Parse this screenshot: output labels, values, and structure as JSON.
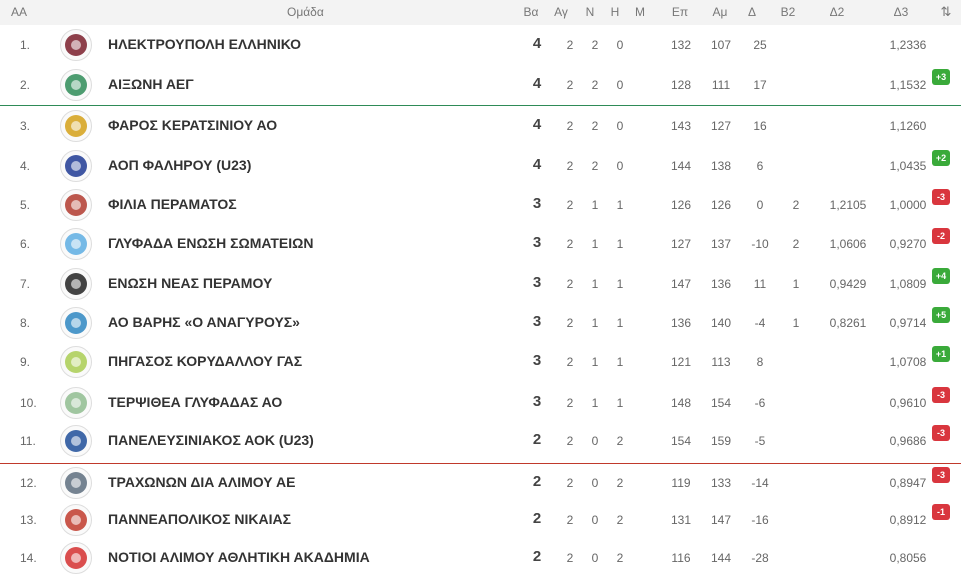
{
  "header": {
    "aa": "ΑΑ",
    "team": "Ομάδα",
    "pts": "Βα",
    "played": "Αγ",
    "won": "Ν",
    "lost": "Η",
    "m": "Μ",
    "pf": "Επ",
    "pa": "Αμ",
    "d": "Δ",
    "b2": "Β2",
    "d2": "Δ2",
    "d3": "Δ3",
    "sort_icon": "⇅"
  },
  "rows": [
    {
      "pos": "1.",
      "team": "ΗΛΕΚΤΡΟΥΠΟΛΗ ΕΛΛΗΝΙΚΟ",
      "pts": "4",
      "played": "2",
      "won": "2",
      "lost": "0",
      "pf": "132",
      "pa": "107",
      "d": "25",
      "b2": "",
      "d2": "",
      "d3": "1,2336",
      "badge": "",
      "badge_type": "",
      "logo_color": "#7a1f2b"
    },
    {
      "pos": "2.",
      "team": "ΑΙΞΩΝΗ ΑΕΓ",
      "pts": "4",
      "played": "2",
      "won": "2",
      "lost": "0",
      "pf": "128",
      "pa": "111",
      "d": "17",
      "b2": "",
      "d2": "",
      "d3": "1,1532",
      "badge": "+3",
      "badge_type": "up",
      "logo_color": "#2e8b57"
    },
    {
      "pos": "3.",
      "team": "ΦΑΡΟΣ ΚΕΡΑΤΣΙΝΙΟΥ ΑΟ",
      "pts": "4",
      "played": "2",
      "won": "2",
      "lost": "0",
      "pf": "143",
      "pa": "127",
      "d": "16",
      "b2": "",
      "d2": "",
      "d3": "1,1260",
      "badge": "",
      "badge_type": "",
      "logo_color": "#d4a017"
    },
    {
      "pos": "4.",
      "team": "ΑΟΠ ΦΑΛΗΡΟΥ (U23)",
      "pts": "4",
      "played": "2",
      "won": "2",
      "lost": "0",
      "pf": "144",
      "pa": "138",
      "d": "6",
      "b2": "",
      "d2": "",
      "d3": "1,0435",
      "badge": "+2",
      "badge_type": "up",
      "logo_color": "#1f3a93"
    },
    {
      "pos": "5.",
      "team": "ΦΙΛΙΑ ΠΕΡΑΜΑΤΟΣ",
      "pts": "3",
      "played": "2",
      "won": "1",
      "lost": "1",
      "pf": "126",
      "pa": "126",
      "d": "0",
      "b2": "2",
      "d2": "1,2105",
      "d3": "1,0000",
      "badge": "-3",
      "badge_type": "down",
      "logo_color": "#b03a2e"
    },
    {
      "pos": "6.",
      "team": "ΓΛΥΦΑΔΑ ΕΝΩΣΗ ΣΩΜΑΤΕΙΩΝ",
      "pts": "3",
      "played": "2",
      "won": "1",
      "lost": "1",
      "pf": "127",
      "pa": "137",
      "d": "-10",
      "b2": "2",
      "d2": "1,0606",
      "d3": "0,9270",
      "badge": "-2",
      "badge_type": "down",
      "logo_color": "#5dade2"
    },
    {
      "pos": "7.",
      "team": "ΕΝΩΣΗ ΝΕΑΣ ΠΕΡΑΜΟΥ",
      "pts": "3",
      "played": "2",
      "won": "1",
      "lost": "1",
      "pf": "147",
      "pa": "136",
      "d": "11",
      "b2": "1",
      "d2": "0,9429",
      "d3": "1,0809",
      "badge": "+4",
      "badge_type": "up",
      "logo_color": "#222222"
    },
    {
      "pos": "8.",
      "team": "ΑΟ ΒΑΡΗΣ «Ο ΑΝΑΓΥΡΟΥΣ»",
      "pts": "3",
      "played": "2",
      "won": "1",
      "lost": "1",
      "pf": "136",
      "pa": "140",
      "d": "-4",
      "b2": "1",
      "d2": "0,8261",
      "d3": "0,9714",
      "badge": "+5",
      "badge_type": "up",
      "logo_color": "#2e86c1"
    },
    {
      "pos": "9.",
      "team": "ΠΗΓΑΣΟΣ ΚΟΡΥΔΑΛΛΟΥ ΓΑΣ",
      "pts": "3",
      "played": "2",
      "won": "1",
      "lost": "1",
      "pf": "121",
      "pa": "113",
      "d": "8",
      "b2": "",
      "d2": "",
      "d3": "1,0708",
      "badge": "+1",
      "badge_type": "up",
      "logo_color": "#a9cc52"
    },
    {
      "pos": "10.",
      "team": "ΤΕΡΨΙΘΕΑ ΓΛΥΦΑΔΑΣ ΑΟ",
      "pts": "3",
      "played": "2",
      "won": "1",
      "lost": "1",
      "pf": "148",
      "pa": "154",
      "d": "-6",
      "b2": "",
      "d2": "",
      "d3": "0,9610",
      "badge": "-3",
      "badge_type": "down",
      "logo_color": "#8fbc8f"
    },
    {
      "pos": "11.",
      "team": "ΠΑΝΕΛΕΥΣΙΝΙΑΚΟΣ ΑΟΚ (U23)",
      "pts": "2",
      "played": "2",
      "won": "0",
      "lost": "2",
      "pf": "154",
      "pa": "159",
      "d": "-5",
      "b2": "",
      "d2": "",
      "d3": "0,9686",
      "badge": "-3",
      "badge_type": "down",
      "logo_color": "#1f4e99"
    },
    {
      "pos": "12.",
      "team": "ΤΡΑΧΩΝΩΝ ΔΙΑ ΑΛΙΜΟΥ ΑΕ",
      "pts": "2",
      "played": "2",
      "won": "0",
      "lost": "2",
      "pf": "119",
      "pa": "133",
      "d": "-14",
      "b2": "",
      "d2": "",
      "d3": "0,8947",
      "badge": "-3",
      "badge_type": "down",
      "logo_color": "#5d6d7e"
    },
    {
      "pos": "13.",
      "team": "ΠΑΝΝΕΑΠΟΛΙΚΟΣ ΝΙΚΑΙΑΣ",
      "pts": "2",
      "played": "2",
      "won": "0",
      "lost": "2",
      "pf": "131",
      "pa": "147",
      "d": "-16",
      "b2": "",
      "d2": "",
      "d3": "0,8912",
      "badge": "-1",
      "badge_type": "down",
      "logo_color": "#c0392b"
    },
    {
      "pos": "14.",
      "team": "ΝΟΤΙΟΙ ΑΛΙΜΟΥ ΑΘΛΗΤΙΚΗ ΑΚΑΔΗΜΙΑ",
      "pts": "2",
      "played": "2",
      "won": "0",
      "lost": "2",
      "pf": "116",
      "pa": "144",
      "d": "-28",
      "b2": "",
      "d2": "",
      "d3": "0,8056",
      "badge": "",
      "badge_type": "",
      "logo_color": "#d32f2f"
    }
  ]
}
